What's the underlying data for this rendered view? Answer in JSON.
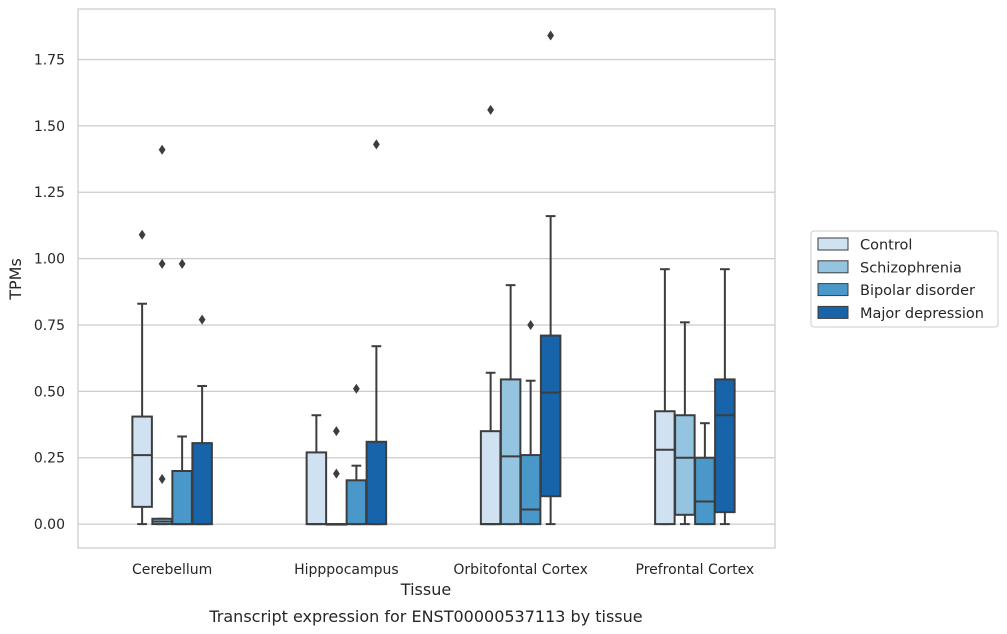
{
  "caption": "Transcript expression for ENST00000537113 by tissue",
  "chart_data": {
    "type": "box",
    "title": "",
    "xlabel": "Tissue",
    "ylabel": "TPMs",
    "ylim": [
      -0.09,
      1.94
    ],
    "yticks": [
      "0.00",
      "0.25",
      "0.50",
      "0.75",
      "1.00",
      "1.25",
      "1.50",
      "1.75"
    ],
    "grid": "horizontal",
    "legend_position": "right",
    "categories": [
      "Cerebellum",
      "Hipppocampus",
      "Orbitofontal Cortex",
      "Prefrontal Cortex"
    ],
    "series": [
      {
        "name": "Control",
        "color": "#d0e1f2",
        "boxes": [
          {
            "min": 0.0,
            "q1": 0.065,
            "median": 0.26,
            "q3": 0.405,
            "max": 0.83,
            "outliers": [
              1.09
            ]
          },
          {
            "min": 0.0,
            "q1": 0.0,
            "median": 0.0,
            "q3": 0.27,
            "max": 0.41,
            "outliers": []
          },
          {
            "min": 0.0,
            "q1": 0.0,
            "median": 0.0,
            "q3": 0.35,
            "max": 0.57,
            "outliers": [
              1.56
            ]
          },
          {
            "min": 0.0,
            "q1": 0.0,
            "median": 0.28,
            "q3": 0.425,
            "max": 0.96,
            "outliers": []
          }
        ]
      },
      {
        "name": "Schizophrenia",
        "color": "#94c4df",
        "boxes": [
          {
            "min": 0.0,
            "q1": 0.0,
            "median": 0.01,
            "q3": 0.02,
            "max": 0.02,
            "outliers": [
              0.17,
              0.98,
              1.41
            ]
          },
          {
            "min": 0.0,
            "q1": 0.0,
            "median": 0.0,
            "q3": 0.0,
            "max": 0.0,
            "outliers": [
              0.19,
              0.35
            ]
          },
          {
            "min": 0.0,
            "q1": 0.0,
            "median": 0.255,
            "q3": 0.545,
            "max": 0.9,
            "outliers": []
          },
          {
            "min": 0.0,
            "q1": 0.035,
            "median": 0.25,
            "q3": 0.41,
            "max": 0.76,
            "outliers": []
          }
        ]
      },
      {
        "name": "Bipolar disorder",
        "color": "#4a98c9",
        "boxes": [
          {
            "min": 0.0,
            "q1": 0.0,
            "median": 0.0,
            "q3": 0.2,
            "max": 0.33,
            "outliers": [
              0.98
            ]
          },
          {
            "min": 0.0,
            "q1": 0.0,
            "median": 0.0,
            "q3": 0.165,
            "max": 0.22,
            "outliers": [
              0.51
            ]
          },
          {
            "min": 0.0,
            "q1": 0.0,
            "median": 0.055,
            "q3": 0.26,
            "max": 0.54,
            "outliers": [
              0.75
            ]
          },
          {
            "min": 0.0,
            "q1": 0.0,
            "median": 0.085,
            "q3": 0.25,
            "max": 0.38,
            "outliers": []
          }
        ]
      },
      {
        "name": "Major depression",
        "color": "#1764ab",
        "boxes": [
          {
            "min": 0.0,
            "q1": 0.0,
            "median": 0.0,
            "q3": 0.305,
            "max": 0.52,
            "outliers": [
              0.77
            ]
          },
          {
            "min": 0.0,
            "q1": 0.0,
            "median": 0.0,
            "q3": 0.31,
            "max": 0.67,
            "outliers": [
              1.43
            ]
          },
          {
            "min": 0.0,
            "q1": 0.105,
            "median": 0.495,
            "q3": 0.71,
            "max": 1.16,
            "outliers": [
              1.84
            ]
          },
          {
            "min": 0.0,
            "q1": 0.045,
            "median": 0.41,
            "q3": 0.545,
            "max": 0.96,
            "outliers": []
          }
        ]
      }
    ]
  }
}
